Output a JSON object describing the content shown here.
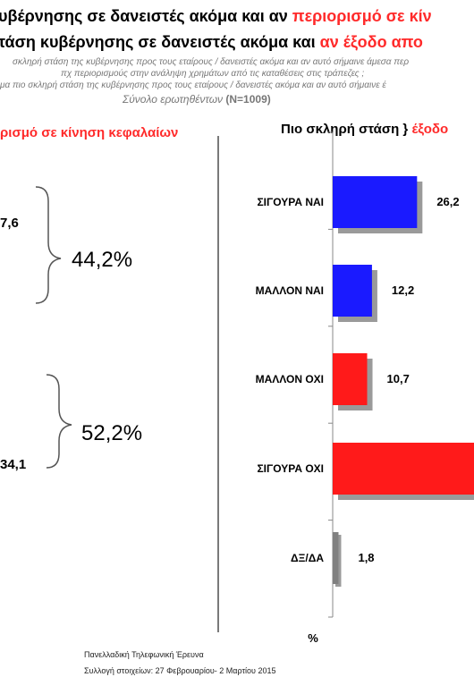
{
  "header": {
    "line1_black": "υβέρνησης σε δανειστές ακόμα και αν",
    "line1_red": "περιορισμό σε κίν",
    "line2_black": "τάση κυβέρνησης σε δανειστές ακόμα και",
    "line2_red": "αν έξοδο απο",
    "sub1": "σκληρή στάση της κυβέρνησης προς τους εταίρους / δανειστές ακόμα και αν αυτό σήμαινε άμεσα περ",
    "sub2": "πχ περιορισμούς στην  ανάληψη χρημάτων από τις καταθέσεις στις τράπεζες ;",
    "sub3": "μα πιο σκληρή στάση της κυβέρνησης προς τους εταίρους / δανειστές ακόμα και αν αυτό σήμαινε έ",
    "sample_label": "Σύνολο ερωτηθέντων",
    "sample_n": "(N=1009)"
  },
  "left_panel": {
    "title": "ρισμό σε κίνηση κεφαλαίων",
    "value_top": "7,6",
    "value_bottom": "34,1",
    "sum_yes": "44,2%",
    "sum_no": "52,2%"
  },
  "right_panel": {
    "title_black": "Πιο σκληρή στάση }",
    "title_red": "έξοδο"
  },
  "footer": {
    "line1": "Πανελλαδική  Τηλεφωνική Έρευνα",
    "line2": "Συλλογή στοιχείων: 27 Φεβρουαρίου- 2 Μαρτίου  2015"
  },
  "chart_data": {
    "type": "bar",
    "orientation": "horizontal",
    "title": "Πιο σκληρή στάση } έξοδο",
    "categories": [
      "ΣΙΓΟΥΡΑ ΝΑΙ",
      "ΜΑΛΛΟΝ ΝΑΙ",
      "ΜΑΛΛΟΝ ΟΧΙ",
      "ΣΙΓΟΥΡΑ ΟΧΙ",
      "ΔΞ/ΔΑ"
    ],
    "values": [
      26.2,
      12.2,
      10.7,
      null,
      1.8
    ],
    "value_labels": [
      "26,2",
      "12,2",
      "10,7",
      "",
      "1,8"
    ],
    "colors": [
      "#1a1aff",
      "#1a1aff",
      "#ff1a1a",
      "#ff1a1a",
      "#808080"
    ],
    "xlabel": "%",
    "ylabel": ""
  }
}
